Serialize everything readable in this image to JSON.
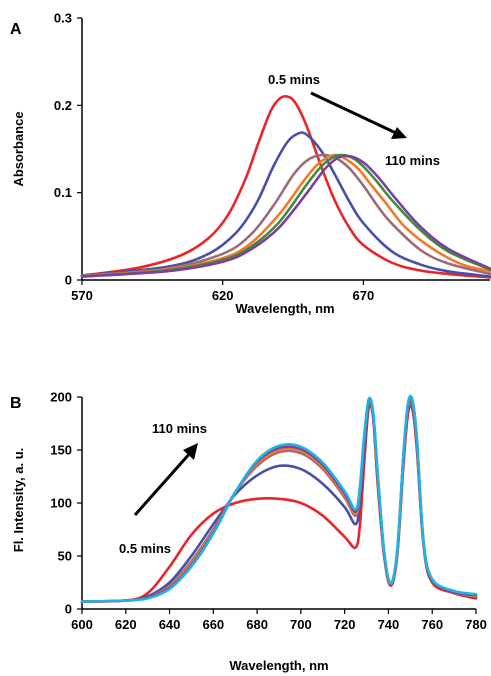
{
  "chart_data": [
    {
      "type": "line",
      "panel_label": "A",
      "xlabel": "Wavelength, nm",
      "ylabel": "Absorbance",
      "xlim": [
        570,
        715
      ],
      "ylim": [
        0,
        0.3
      ],
      "xticks": [
        "570",
        "620",
        "670"
      ],
      "yticks": [
        "0",
        "0.1",
        "0.2",
        "0.3"
      ],
      "grid": false,
      "legend": "none",
      "annotations": [
        "0.5 mins",
        "110 mins"
      ],
      "series": [
        {
          "color": "#e8262a",
          "x": [
            570,
            590,
            605,
            615,
            622,
            628,
            633,
            637,
            640,
            643,
            646,
            650,
            655,
            660,
            665,
            670,
            680,
            690,
            700,
            715
          ],
          "y": [
            0.005,
            0.014,
            0.028,
            0.048,
            0.075,
            0.115,
            0.16,
            0.193,
            0.207,
            0.21,
            0.202,
            0.175,
            0.13,
            0.09,
            0.06,
            0.04,
            0.02,
            0.011,
            0.007,
            0.003
          ]
        },
        {
          "color": "#4750a8",
          "x": [
            570,
            600,
            615,
            625,
            632,
            638,
            643,
            647,
            650,
            655,
            660,
            665,
            670,
            680,
            690,
            700,
            715
          ],
          "y": [
            0.005,
            0.015,
            0.03,
            0.055,
            0.088,
            0.13,
            0.158,
            0.168,
            0.166,
            0.148,
            0.12,
            0.09,
            0.065,
            0.033,
            0.018,
            0.01,
            0.004
          ]
        },
        {
          "color": "#9e6b78",
          "x": [
            570,
            600,
            620,
            630,
            638,
            645,
            650,
            655,
            660,
            665,
            670,
            675,
            680,
            690,
            700,
            715
          ],
          "y": [
            0.005,
            0.013,
            0.03,
            0.052,
            0.085,
            0.12,
            0.137,
            0.143,
            0.14,
            0.128,
            0.108,
            0.085,
            0.065,
            0.035,
            0.019,
            0.007
          ]
        },
        {
          "color": "#f07a28",
          "x": [
            570,
            600,
            620,
            630,
            640,
            648,
            653,
            657,
            660,
            663,
            668,
            673,
            678,
            685,
            695,
            705,
            715
          ],
          "y": [
            0.004,
            0.012,
            0.025,
            0.042,
            0.075,
            0.11,
            0.13,
            0.14,
            0.143,
            0.14,
            0.128,
            0.108,
            0.088,
            0.06,
            0.035,
            0.018,
            0.01
          ]
        },
        {
          "color": "#3e8c3a",
          "x": [
            570,
            600,
            620,
            630,
            640,
            650,
            655,
            659,
            662,
            666,
            670,
            675,
            680,
            690,
            700,
            715
          ],
          "y": [
            0.004,
            0.011,
            0.023,
            0.038,
            0.066,
            0.11,
            0.13,
            0.14,
            0.143,
            0.14,
            0.13,
            0.112,
            0.092,
            0.058,
            0.033,
            0.012
          ]
        },
        {
          "color": "#7b3fa0",
          "x": [
            570,
            600,
            620,
            630,
            640,
            650,
            656,
            660,
            663,
            667,
            671,
            676,
            681,
            690,
            700,
            715
          ],
          "y": [
            0.004,
            0.01,
            0.021,
            0.035,
            0.06,
            0.1,
            0.126,
            0.138,
            0.142,
            0.14,
            0.132,
            0.115,
            0.095,
            0.062,
            0.036,
            0.013
          ]
        }
      ]
    },
    {
      "type": "line",
      "panel_label": "B",
      "xlabel": "Wavelength, nm",
      "ylabel": "Fl. Intensity, a. u.",
      "xlim": [
        600,
        780
      ],
      "ylim": [
        0,
        200
      ],
      "xticks": [
        "600",
        "620",
        "640",
        "660",
        "680",
        "700",
        "720",
        "740",
        "760",
        "780"
      ],
      "yticks": [
        "0",
        "50",
        "100",
        "150",
        "200"
      ],
      "grid": false,
      "legend": "none",
      "annotations": [
        "110 mins",
        "0.5 mins"
      ],
      "series": [
        {
          "color": "#e8262a",
          "x": [
            600,
            620,
            630,
            640,
            650,
            660,
            670,
            680,
            690,
            700,
            710,
            720,
            725,
            727,
            729,
            731,
            733,
            735,
            738,
            741,
            744,
            747,
            749,
            751,
            753,
            756,
            760,
            770,
            780
          ],
          "y": [
            7,
            8,
            15,
            40,
            70,
            90,
            100,
            104,
            104,
            100,
            88,
            68,
            58,
            80,
            140,
            190,
            180,
            120,
            50,
            22,
            50,
            140,
            185,
            188,
            150,
            60,
            25,
            15,
            10
          ]
        },
        {
          "color": "#4750a8",
          "x": [
            600,
            620,
            630,
            640,
            650,
            660,
            670,
            680,
            690,
            700,
            710,
            720,
            725,
            727,
            729,
            731,
            733,
            735,
            738,
            741,
            744,
            747,
            749,
            751,
            753,
            756,
            760,
            770,
            780
          ],
          "y": [
            7,
            8,
            12,
            25,
            50,
            80,
            108,
            126,
            135,
            132,
            118,
            96,
            80,
            100,
            150,
            192,
            182,
            125,
            52,
            24,
            52,
            145,
            190,
            192,
            155,
            62,
            27,
            16,
            11
          ]
        },
        {
          "color": "#9e6b78",
          "x": [
            600,
            620,
            630,
            640,
            650,
            660,
            670,
            680,
            690,
            700,
            710,
            720,
            725,
            727,
            729,
            731,
            733,
            735,
            738,
            741,
            744,
            747,
            749,
            751,
            753,
            756,
            760,
            770,
            780
          ],
          "y": [
            7,
            8,
            11,
            22,
            45,
            75,
            110,
            135,
            148,
            147,
            132,
            105,
            88,
            110,
            160,
            195,
            183,
            128,
            53,
            24,
            53,
            148,
            192,
            194,
            158,
            63,
            28,
            16,
            12
          ]
        },
        {
          "color": "#f07a28",
          "x": [
            600,
            620,
            630,
            640,
            650,
            660,
            670,
            680,
            690,
            700,
            710,
            720,
            725,
            727,
            729,
            731,
            733,
            735,
            738,
            741,
            744,
            747,
            749,
            751,
            753,
            756,
            760,
            770,
            780
          ],
          "y": [
            7,
            8,
            11,
            21,
            43,
            73,
            110,
            137,
            150,
            149,
            134,
            107,
            90,
            112,
            162,
            196,
            184,
            129,
            54,
            24,
            54,
            149,
            193,
            195,
            159,
            63,
            28,
            16,
            12
          ]
        },
        {
          "color": "#7b3fa0",
          "x": [
            600,
            620,
            630,
            640,
            650,
            660,
            670,
            680,
            690,
            700,
            710,
            720,
            725,
            727,
            729,
            731,
            733,
            735,
            738,
            741,
            744,
            747,
            749,
            751,
            753,
            756,
            760,
            770,
            780
          ],
          "y": [
            7,
            8,
            11,
            20,
            41,
            72,
            110,
            139,
            152,
            151,
            136,
            109,
            92,
            114,
            164,
            197,
            185,
            130,
            54,
            24,
            54,
            150,
            194,
            196,
            160,
            64,
            28,
            16,
            13
          ]
        },
        {
          "color": "#22b4e0",
          "x": [
            600,
            620,
            630,
            640,
            650,
            660,
            670,
            680,
            690,
            700,
            710,
            720,
            725,
            727,
            729,
            731,
            733,
            735,
            738,
            741,
            744,
            747,
            749,
            751,
            753,
            756,
            760,
            770,
            780
          ],
          "y": [
            7,
            8,
            10,
            19,
            40,
            71,
            110,
            140,
            154,
            153,
            138,
            111,
            94,
            116,
            166,
            198,
            186,
            131,
            55,
            24,
            55,
            151,
            195,
            197,
            161,
            64,
            28,
            17,
            14
          ]
        }
      ]
    }
  ]
}
